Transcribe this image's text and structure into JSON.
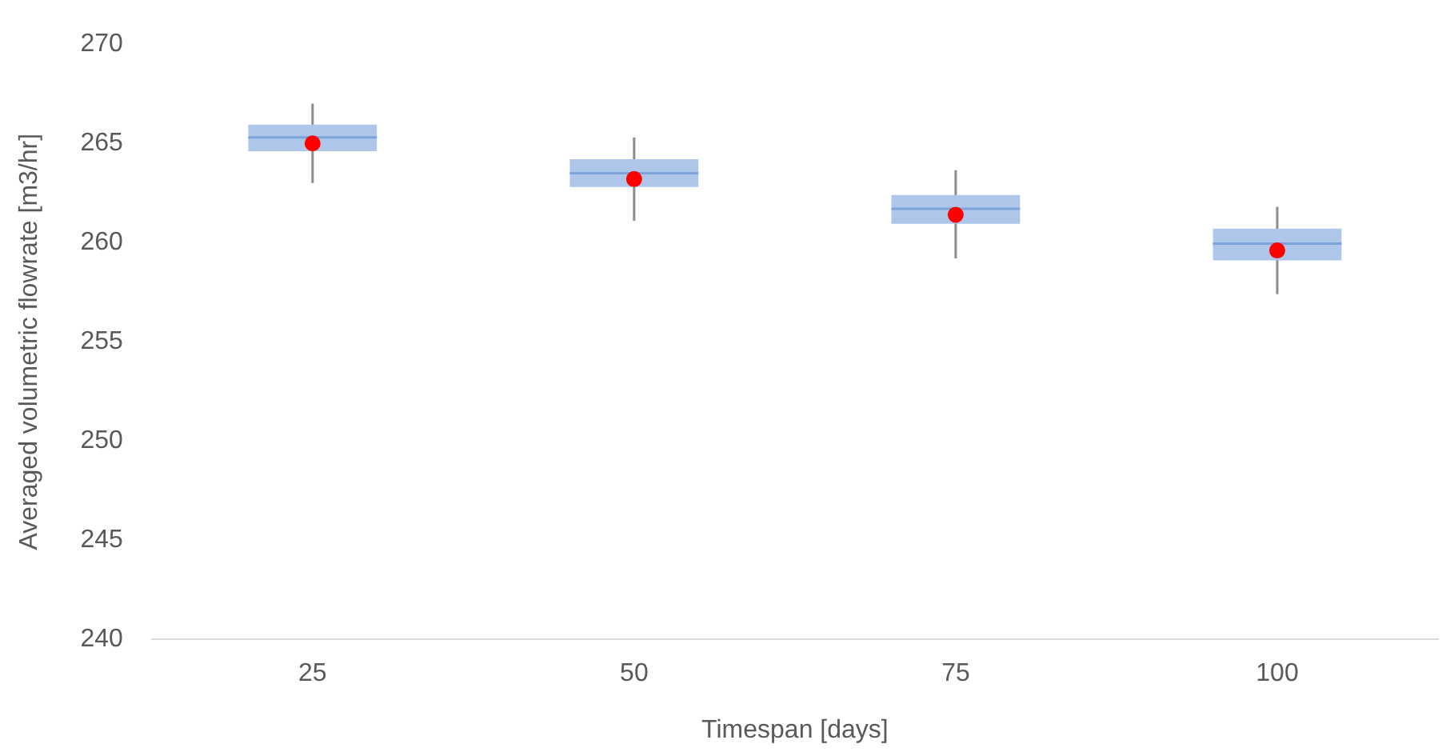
{
  "chart_data": {
    "type": "box",
    "xlabel": "Timespan [days]",
    "ylabel": "Averaged volumetric flowrate [m3/hr]",
    "categories": [
      "25",
      "50",
      "75",
      "100"
    ],
    "color": "#adc6ea",
    "boxes": [
      {
        "low": 263.0,
        "q1": 264.6,
        "median": 265.3,
        "q3": 265.95,
        "high": 267.0,
        "mean": 265.0
      },
      {
        "low": 261.1,
        "q1": 262.8,
        "median": 263.5,
        "q3": 264.2,
        "high": 265.3,
        "mean": 263.2
      },
      {
        "low": 259.2,
        "q1": 260.95,
        "median": 261.7,
        "q3": 262.4,
        "high": 263.65,
        "mean": 261.4
      },
      {
        "low": 257.4,
        "q1": 259.1,
        "median": 259.95,
        "q3": 260.7,
        "high": 261.8,
        "mean": 259.6
      }
    ],
    "ylim": [
      240,
      270
    ],
    "yticks": [
      240,
      245,
      250,
      255,
      260,
      265,
      270
    ]
  }
}
